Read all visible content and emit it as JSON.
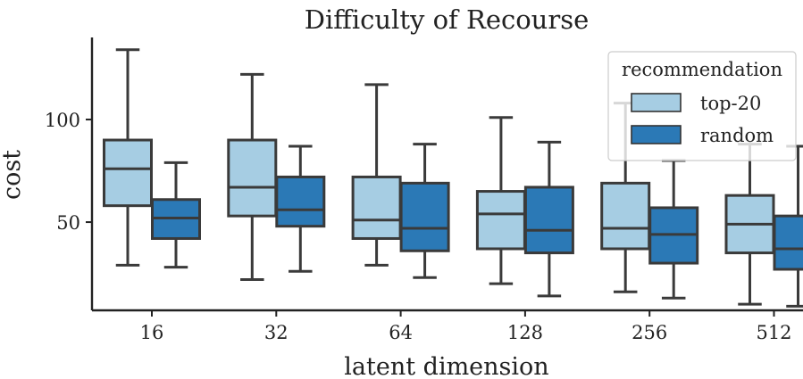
{
  "chart_data": {
    "type": "boxplot",
    "title": "Difficulty of Recourse",
    "xlabel": "latent dimension",
    "ylabel": "cost",
    "categories": [
      "16",
      "32",
      "64",
      "128",
      "256",
      "512"
    ],
    "ylim": [
      7,
      140
    ],
    "yticks": [
      50,
      100
    ],
    "grid": false,
    "legend": {
      "title": "recommendation",
      "position": "top-right",
      "entries": [
        "top-20",
        "random"
      ]
    },
    "series": [
      {
        "name": "top-20",
        "color": "#a6cde3",
        "boxes": [
          {
            "whisker_low": 29,
            "q1": 58,
            "median": 76,
            "q3": 90,
            "whisker_high": 134
          },
          {
            "whisker_low": 22,
            "q1": 53,
            "median": 67,
            "q3": 90,
            "whisker_high": 122
          },
          {
            "whisker_low": 29,
            "q1": 42,
            "median": 51,
            "q3": 72,
            "whisker_high": 117
          },
          {
            "whisker_low": 20,
            "q1": 37,
            "median": 54,
            "q3": 65,
            "whisker_high": 101
          },
          {
            "whisker_low": 16,
            "q1": 37,
            "median": 47,
            "q3": 69,
            "whisker_high": 108
          },
          {
            "whisker_low": 10,
            "q1": 35,
            "median": 49,
            "q3": 63,
            "whisker_high": 88
          }
        ]
      },
      {
        "name": "random",
        "color": "#2b79b6",
        "boxes": [
          {
            "whisker_low": 28,
            "q1": 42,
            "median": 52,
            "q3": 61,
            "whisker_high": 79
          },
          {
            "whisker_low": 26,
            "q1": 48,
            "median": 56,
            "q3": 72,
            "whisker_high": 87
          },
          {
            "whisker_low": 23,
            "q1": 36,
            "median": 47,
            "q3": 69,
            "whisker_high": 88
          },
          {
            "whisker_low": 14,
            "q1": 35,
            "median": 46,
            "q3": 67,
            "whisker_high": 89
          },
          {
            "whisker_low": 13,
            "q1": 30,
            "median": 44,
            "q3": 57,
            "whisker_high": 80
          },
          {
            "whisker_low": 9,
            "q1": 27,
            "median": 37,
            "q3": 53,
            "whisker_high": 87
          }
        ]
      }
    ]
  }
}
